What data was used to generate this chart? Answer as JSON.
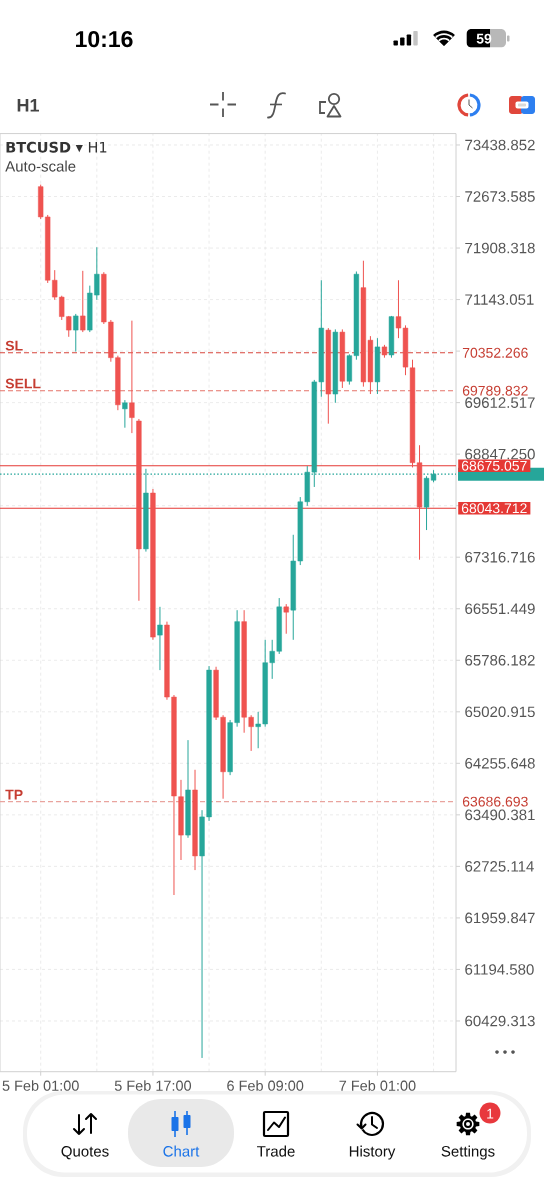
{
  "chart_data": {
    "type": "candlestick",
    "title": "**BTCUSD** ▾ H1",
    "subtitle": "Auto-scale",
    "annotations": [
      "10:16",
      "59",
      "H1",
      "Quotes",
      "Chart",
      "Trade",
      "History",
      "Settings",
      "1",
      "70352.266",
      "69789.832",
      "68675.057",
      "68043.712",
      "63686.693"
    ],
    "categories": [
      "5 Feb 01:00",
      null,
      null,
      null,
      null,
      null,
      null,
      null,
      null,
      null,
      null,
      null,
      null,
      null,
      null,
      null,
      "5 Feb 17:00",
      null,
      null,
      null,
      null,
      null,
      null,
      null,
      null,
      null,
      null,
      null,
      null,
      null,
      null,
      null,
      "6 Feb 09:00",
      null,
      null,
      null,
      null,
      null,
      null,
      null,
      null,
      null,
      null,
      null,
      null,
      null,
      null,
      null,
      "7 Feb 01:00",
      null,
      null,
      null,
      null,
      null,
      null,
      null,
      null
    ],
    "ohlc": [
      [
        72820,
        72850,
        72340,
        72370
      ],
      [
        72370,
        72400,
        71390,
        71430
      ],
      [
        71430,
        71580,
        71140,
        71180
      ],
      [
        71180,
        71200,
        70840,
        70890
      ],
      [
        70890,
        70900,
        70590,
        70690
      ],
      [
        70690,
        70930,
        70370,
        70900
      ],
      [
        70900,
        71570,
        70660,
        70690
      ],
      [
        70690,
        71350,
        70660,
        71240
      ],
      [
        71210,
        71920,
        71140,
        71520
      ],
      [
        71520,
        71550,
        70780,
        70810
      ],
      [
        70810,
        70840,
        70220,
        70280
      ],
      [
        70280,
        70310,
        69500,
        69580
      ],
      [
        69520,
        69650,
        69240,
        69610
      ],
      [
        69610,
        70830,
        69160,
        69390
      ],
      [
        69340,
        69370,
        66670,
        67440
      ],
      [
        67440,
        68630,
        67400,
        68270
      ],
      [
        68270,
        68330,
        66090,
        66130
      ],
      [
        66160,
        66580,
        65640,
        66310
      ],
      [
        66310,
        66360,
        65200,
        65240
      ],
      [
        65240,
        65270,
        62300,
        63770
      ],
      [
        63760,
        64010,
        62820,
        63190
      ],
      [
        63190,
        64600,
        63150,
        63860
      ],
      [
        63860,
        64160,
        62670,
        62880
      ],
      [
        62880,
        63560,
        59880,
        63460
      ],
      [
        63460,
        65700,
        63400,
        65640
      ],
      [
        65640,
        65690,
        64900,
        64940
      ],
      [
        64940,
        64970,
        63730,
        64130
      ],
      [
        64130,
        64900,
        64080,
        64860
      ],
      [
        64860,
        66530,
        64800,
        66360
      ],
      [
        66360,
        66530,
        64710,
        64940
      ],
      [
        64940,
        64970,
        64440,
        64800
      ],
      [
        64800,
        65020,
        64480,
        64840
      ],
      [
        64840,
        66090,
        64800,
        65750
      ],
      [
        65750,
        66090,
        65510,
        65920
      ],
      [
        65920,
        66710,
        65880,
        66580
      ],
      [
        66580,
        66620,
        66180,
        66500
      ],
      [
        66530,
        67650,
        66090,
        67260
      ],
      [
        67260,
        68210,
        67200,
        68140
      ],
      [
        68140,
        68670,
        68080,
        68580
      ],
      [
        68580,
        69950,
        68360,
        69920
      ],
      [
        69920,
        71430,
        69700,
        70720
      ],
      [
        70690,
        70720,
        69300,
        69740
      ],
      [
        69740,
        70700,
        69610,
        70660
      ],
      [
        70660,
        70700,
        69830,
        69930
      ],
      [
        69930,
        70330,
        69880,
        70310
      ],
      [
        70310,
        71560,
        70250,
        71520
      ],
      [
        71320,
        71720,
        69850,
        69920
      ],
      [
        70540,
        70600,
        69740,
        69920
      ],
      [
        69920,
        70570,
        69740,
        70440
      ],
      [
        70440,
        70470,
        70280,
        70320
      ],
      [
        70320,
        70900,
        70280,
        70890
      ],
      [
        70890,
        71430,
        70570,
        70720
      ],
      [
        70720,
        70760,
        70020,
        70140
      ],
      [
        70130,
        70250,
        68650,
        68720
      ],
      [
        68720,
        68980,
        67280,
        68060
      ],
      [
        68060,
        68520,
        67720,
        68490
      ],
      [
        68460,
        68610,
        68430,
        68550
      ]
    ],
    "colors": [
      "#ef5350",
      "#ef5350",
      "#ef5350",
      "#ef5350",
      "#ef5350",
      "#26a69a",
      "#ef5350",
      "#26a69a",
      "#26a69a",
      "#ef5350",
      "#ef5350",
      "#ef5350",
      "#26a69a",
      "#ef5350",
      "#ef5350",
      "#26a69a",
      "#ef5350",
      "#26a69a",
      "#ef5350",
      "#ef5350",
      "#ef5350",
      "#26a69a",
      "#ef5350",
      "#26a69a",
      "#26a69a",
      "#ef5350",
      "#ef5350",
      "#26a69a",
      "#26a69a",
      "#ef5350",
      "#ef5350",
      "#26a69a",
      "#26a69a",
      "#26a69a",
      "#26a69a",
      "#ef5350",
      "#26a69a",
      "#26a69a",
      "#26a69a",
      "#26a69a",
      "#26a69a",
      "#ef5350",
      "#26a69a",
      "#ef5350",
      "#26a69a",
      "#26a69a",
      "#ef5350",
      "#ef5350",
      "#26a69a",
      "#ef5350",
      "#26a69a",
      "#ef5350",
      "#ef5350",
      "#ef5350",
      "#ef5350",
      "#26a69a",
      "#26a69a"
    ],
    "ylim": [
      59676,
      73608
    ],
    "yticks": [
      73438.852,
      72673.585,
      71908.318,
      71143.051,
      {
        "value": 70377.784,
        "label": null
      },
      69612.517,
      {
        "value": 68847.25,
        "label": "68847.250"
      },
      {
        "value": 68081.983,
        "label": null
      },
      67316.716,
      66551.449,
      65786.182,
      65020.915,
      64255.648,
      63490.381,
      62725.114,
      61959.847,
      {
        "value": 61194.58,
        "label": "61194.580"
      },
      60429.313
    ],
    "grid": true,
    "ref_lines": [
      {
        "axis": "y",
        "value": 70352.266,
        "label": "SL",
        "color": "#d8463c",
        "line_style": "dashed"
      },
      {
        "axis": "y",
        "value": 69789.832,
        "label": "SELL",
        "color": "#e5736a",
        "line_style": "dashed"
      },
      {
        "axis": "y",
        "value": 68675.057,
        "color": "#e53935",
        "line_style": "solid"
      },
      {
        "axis": "y",
        "value": 68550,
        "color": "#26a69a",
        "line_style": "dotted"
      },
      {
        "axis": "y",
        "value": 68043.712,
        "color": "#e53935",
        "line_style": "solid"
      },
      {
        "axis": "y",
        "value": 63686.693,
        "label": "TP",
        "color": "#e9a49e",
        "line_style": "dashed"
      }
    ]
  }
}
